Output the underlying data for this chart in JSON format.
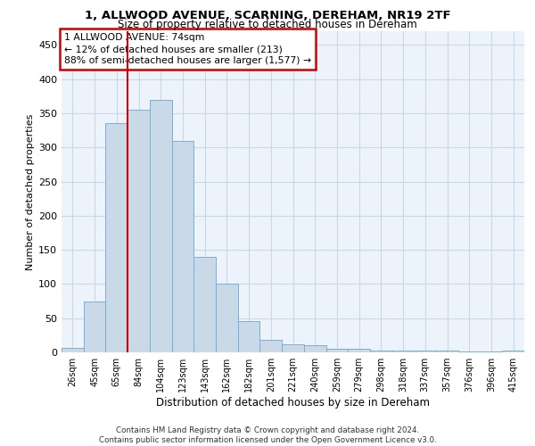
{
  "title1": "1, ALLWOOD AVENUE, SCARNING, DEREHAM, NR19 2TF",
  "title2": "Size of property relative to detached houses in Dereham",
  "xlabel": "Distribution of detached houses by size in Dereham",
  "ylabel": "Number of detached properties",
  "categories": [
    "26sqm",
    "45sqm",
    "65sqm",
    "84sqm",
    "104sqm",
    "123sqm",
    "143sqm",
    "162sqm",
    "182sqm",
    "201sqm",
    "221sqm",
    "240sqm",
    "259sqm",
    "279sqm",
    "298sqm",
    "318sqm",
    "337sqm",
    "357sqm",
    "376sqm",
    "396sqm",
    "415sqm"
  ],
  "values": [
    7,
    75,
    335,
    355,
    370,
    310,
    140,
    100,
    46,
    18,
    12,
    10,
    5,
    5,
    3,
    3,
    2,
    2,
    1,
    1,
    2
  ],
  "bar_color": "#c9d9e8",
  "bar_edge_color": "#7bafd4",
  "property_line_x": 2.5,
  "property_line_color": "#cc0000",
  "annotation_text": "1 ALLWOOD AVENUE: 74sqm\n← 12% of detached houses are smaller (213)\n88% of semi-detached houses are larger (1,577) →",
  "annotation_box_edgecolor": "#cc0000",
  "ylim": [
    0,
    470
  ],
  "yticks": [
    0,
    50,
    100,
    150,
    200,
    250,
    300,
    350,
    400,
    450
  ],
  "footer_line1": "Contains HM Land Registry data © Crown copyright and database right 2024.",
  "footer_line2": "Contains public sector information licensed under the Open Government Licence v3.0.",
  "grid_color": "#c8d8e8",
  "bg_color": "#edf3fa"
}
